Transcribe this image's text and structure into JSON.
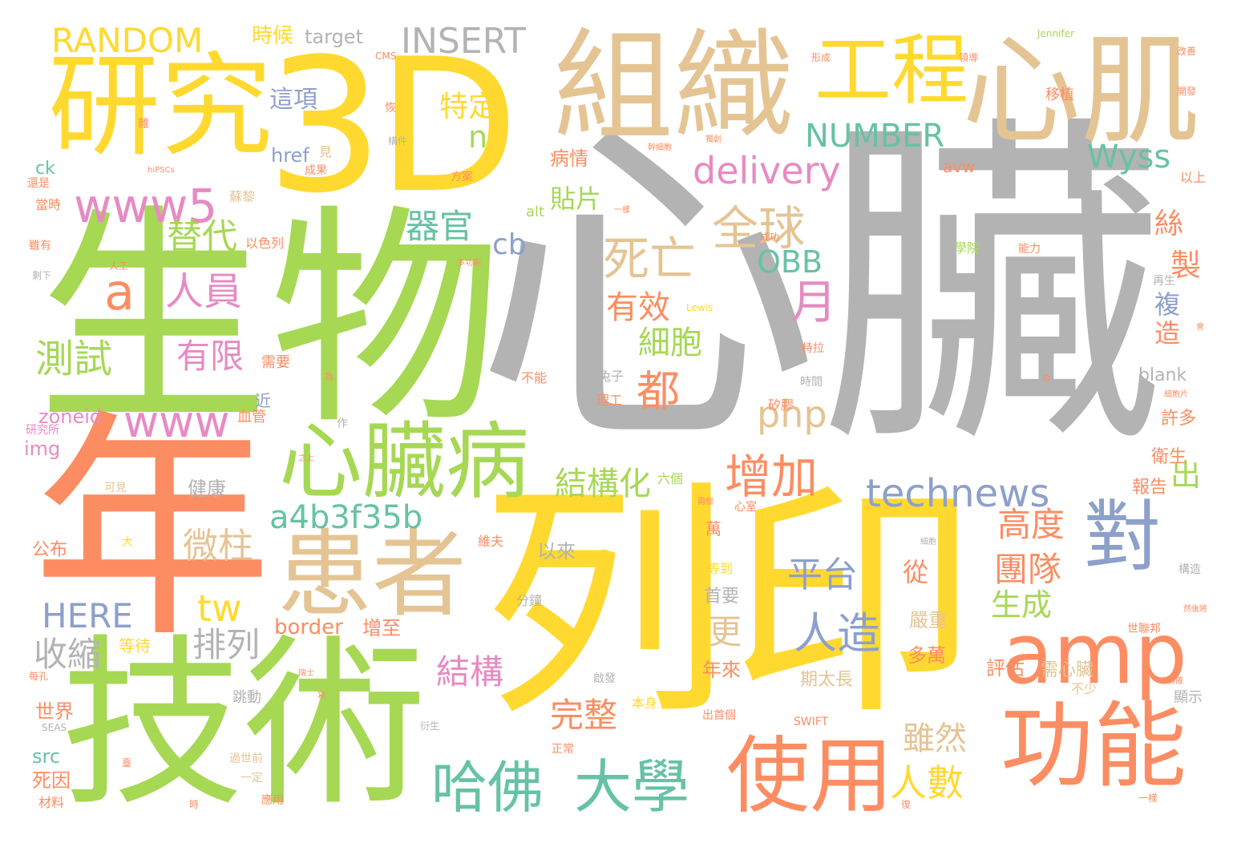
{
  "palette": {
    "gray": "#b3b3b3",
    "yellow": "#ffd92f",
    "green": "#a6d854",
    "orange": "#fc8d62",
    "tan": "#e5c494",
    "blue": "#8da0cb",
    "teal": "#66c2a5",
    "pink": "#e78ac3"
  },
  "words": [
    "心臟",
    "3D",
    "生物",
    "列印",
    "年",
    "技術",
    "研究",
    "組織",
    "心肌",
    "工程",
    "患者",
    "心臟病",
    "功能",
    "使用",
    "amp",
    "對",
    "哈佛",
    "大學",
    "www5",
    "RANDOM",
    "INSERT",
    "死亡",
    "全球",
    "technews",
    "a4b3f35b",
    "delivery",
    "NUMBER",
    "Wyss",
    "增加",
    "人造",
    "a",
    "www",
    "人員",
    "有限",
    "替代",
    "測試",
    "OBB",
    "器官",
    "cb",
    "php",
    "結構化",
    "細胞",
    "有效",
    "都",
    "月",
    "平台",
    "微柱",
    "HERE",
    "tw",
    "收縮",
    "排列",
    "結構",
    "完整",
    "更",
    "團隊",
    "高度",
    "生成",
    "人數",
    "雖然",
    "特定",
    "這項",
    "n",
    "時候",
    "target",
    "href",
    "貼片",
    "病情",
    "製",
    "複",
    "造",
    "絲",
    "出",
    "從",
    "評估",
    "年來",
    "border",
    "增至",
    "世界",
    "src",
    "死因",
    "zoneid",
    "img",
    "ck",
    "blank",
    "許多",
    "衛生",
    "報告",
    "公布",
    "健康",
    "以來",
    "首要",
    "嚴重",
    "多萬",
    "期太長",
    "需心臟",
    "不少",
    "顯示",
    "移植",
    "avw",
    "alt",
    "Jennifer",
    "改善",
    "開發",
    "近",
    "需要",
    "跳動",
    "一定",
    "過世前",
    "材料",
    "兔子",
    "理工",
    "矽膠",
    "時間",
    "特拉",
    "等待",
    "世聯邦",
    "萬",
    "能力",
    "學院",
    "以上",
    "還是",
    "成功",
    "再生",
    "等到",
    "分鐘",
    "本身",
    "出首個",
    "方案",
    "成果",
    "見",
    "蘇黎",
    "當時",
    "雖有",
    "以色列",
    "可見",
    "大",
    "維夫",
    "構造",
    "然後將",
    "SWIFT",
    "SEAS",
    "啟發",
    "正常",
    "心室",
    "兩個",
    "六個",
    "不能",
    "血管",
    "作",
    "研究所",
    "Lewis",
    "形成",
    "領導",
    "CMS",
    "恢",
    "雜",
    "構件",
    "hiPSCs",
    "幹細胞",
    "人工",
    "一樣",
    "多功能",
    "衍生",
    "應用",
    "時",
    "細胞片",
    "會",
    "復",
    "拉",
    "每孔",
    "瑞士",
    "寫",
    "一樣",
    "剩下",
    "細胞",
    "為",
    "之上",
    "獨創",
    "精確",
    "臺"
  ]
}
